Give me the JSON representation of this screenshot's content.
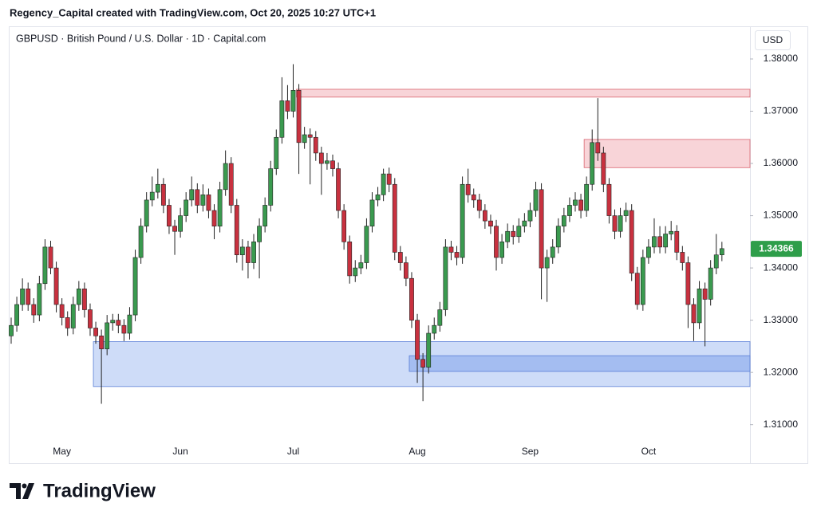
{
  "chart_data": {
    "type": "candlestick",
    "title": "Regency_Capital created with TradingView.com, Oct 20, 2025 10:27 UTC+1",
    "subtitle": "GBPUSD · British Pound / U.S. Dollar · 1D · Capital.com",
    "currency": "USD",
    "brand": "TradingView",
    "last_price": 1.34366,
    "up_color": "#3a9a4f",
    "down_color": "#c8313f",
    "last_price_color": "#2e9e4a",
    "ylim": [
      1.3069,
      1.3861
    ],
    "yticks": [
      {
        "value": 1.31,
        "label": "1.31000"
      },
      {
        "value": 1.32,
        "label": "1.32000"
      },
      {
        "value": 1.33,
        "label": "1.33000"
      },
      {
        "value": 1.34,
        "label": "1.34000"
      },
      {
        "value": 1.35,
        "label": "1.35000"
      },
      {
        "value": 1.36,
        "label": "1.36000"
      },
      {
        "value": 1.37,
        "label": "1.37000"
      },
      {
        "value": 1.38,
        "label": "1.38000"
      }
    ],
    "zones": [
      {
        "start": 51,
        "low": 1.3727,
        "high": 1.3742,
        "color": "#f7cdd1"
      },
      {
        "start": 102,
        "low": 1.3592,
        "high": 1.3646,
        "color": "#f7cdd1"
      },
      {
        "start": 15,
        "low": 1.3173,
        "high": 1.3259,
        "color": "#c6d6f7"
      },
      {
        "start": 71,
        "low": 1.3202,
        "high": 1.3232,
        "color": "#9cb7f0"
      }
    ],
    "categories": [
      null,
      null,
      null,
      null,
      null,
      null,
      null,
      null,
      null,
      "May",
      null,
      null,
      null,
      null,
      null,
      null,
      null,
      null,
      null,
      null,
      null,
      null,
      null,
      null,
      null,
      null,
      null,
      null,
      null,
      null,
      "Jun",
      null,
      null,
      null,
      null,
      null,
      null,
      null,
      null,
      null,
      null,
      null,
      null,
      null,
      null,
      null,
      null,
      null,
      null,
      null,
      "Jul",
      null,
      null,
      null,
      null,
      null,
      null,
      null,
      null,
      null,
      null,
      null,
      null,
      null,
      null,
      null,
      null,
      null,
      null,
      null,
      null,
      null,
      "Aug",
      null,
      null,
      null,
      null,
      null,
      null,
      null,
      null,
      null,
      null,
      null,
      null,
      null,
      null,
      null,
      null,
      null,
      null,
      null,
      "Sep",
      null,
      null,
      null,
      null,
      null,
      null,
      null,
      null,
      null,
      null,
      null,
      null,
      null,
      null,
      null,
      null,
      null,
      null,
      null,
      null,
      "Oct",
      null,
      null,
      null,
      null,
      null,
      null,
      null,
      null,
      null,
      null,
      null,
      null,
      null
    ],
    "candles": [
      [
        1.327,
        1.3305,
        1.3255,
        1.329
      ],
      [
        1.329,
        1.3345,
        1.3278,
        1.333
      ],
      [
        1.333,
        1.338,
        1.3318,
        1.336
      ],
      [
        1.336,
        1.3372,
        1.3318,
        1.333
      ],
      [
        1.333,
        1.3342,
        1.3295,
        1.331
      ],
      [
        1.331,
        1.3385,
        1.3298,
        1.337
      ],
      [
        1.337,
        1.3455,
        1.3358,
        1.344
      ],
      [
        1.344,
        1.3452,
        1.3388,
        1.34
      ],
      [
        1.34,
        1.3412,
        1.3315,
        1.333
      ],
      [
        1.333,
        1.3342,
        1.329,
        1.3305
      ],
      [
        1.3305,
        1.3317,
        1.327,
        1.3285
      ],
      [
        1.3285,
        1.3345,
        1.3273,
        1.333
      ],
      [
        1.333,
        1.3375,
        1.3318,
        1.336
      ],
      [
        1.336,
        1.3372,
        1.3305,
        1.332
      ],
      [
        1.332,
        1.3332,
        1.327,
        1.3285
      ],
      [
        1.3285,
        1.3297,
        1.3255,
        1.327
      ],
      [
        1.327,
        1.3282,
        1.314,
        1.3245
      ],
      [
        1.3245,
        1.331,
        1.3233,
        1.3295
      ],
      [
        1.3295,
        1.3312,
        1.328,
        1.33
      ],
      [
        1.33,
        1.3312,
        1.3275,
        1.329
      ],
      [
        1.329,
        1.3302,
        1.326,
        1.3275
      ],
      [
        1.3275,
        1.3325,
        1.3263,
        1.331
      ],
      [
        1.331,
        1.3435,
        1.3298,
        1.342
      ],
      [
        1.342,
        1.3495,
        1.3408,
        1.348
      ],
      [
        1.348,
        1.3545,
        1.3468,
        1.353
      ],
      [
        1.353,
        1.3575,
        1.3518,
        1.3545
      ],
      [
        1.3545,
        1.359,
        1.3533,
        1.356
      ],
      [
        1.356,
        1.3572,
        1.3505,
        1.352
      ],
      [
        1.352,
        1.3532,
        1.3465,
        1.348
      ],
      [
        1.348,
        1.3492,
        1.3425,
        1.347
      ],
      [
        1.347,
        1.3515,
        1.3458,
        1.35
      ],
      [
        1.35,
        1.3545,
        1.3488,
        1.353
      ],
      [
        1.353,
        1.3575,
        1.3518,
        1.355
      ],
      [
        1.355,
        1.3562,
        1.3505,
        1.352
      ],
      [
        1.352,
        1.356,
        1.3508,
        1.354
      ],
      [
        1.354,
        1.3552,
        1.3495,
        1.351
      ],
      [
        1.351,
        1.3522,
        1.3455,
        1.348
      ],
      [
        1.348,
        1.3565,
        1.3468,
        1.355
      ],
      [
        1.355,
        1.3625,
        1.3538,
        1.36
      ],
      [
        1.36,
        1.3612,
        1.3505,
        1.352
      ],
      [
        1.352,
        1.3532,
        1.341,
        1.3425
      ],
      [
        1.3425,
        1.3455,
        1.3395,
        1.344
      ],
      [
        1.344,
        1.3452,
        1.338,
        1.341
      ],
      [
        1.341,
        1.3465,
        1.3398,
        1.345
      ],
      [
        1.345,
        1.3495,
        1.338,
        1.348
      ],
      [
        1.348,
        1.3535,
        1.3468,
        1.352
      ],
      [
        1.352,
        1.3605,
        1.3508,
        1.359
      ],
      [
        1.359,
        1.3665,
        1.3578,
        1.365
      ],
      [
        1.365,
        1.3765,
        1.3638,
        1.372
      ],
      [
        1.372,
        1.375,
        1.3685,
        1.37
      ],
      [
        1.37,
        1.379,
        1.3688,
        1.374
      ],
      [
        1.374,
        1.3752,
        1.358,
        1.364
      ],
      [
        1.364,
        1.367,
        1.3628,
        1.3655
      ],
      [
        1.3655,
        1.3667,
        1.356,
        1.365
      ],
      [
        1.365,
        1.3662,
        1.3605,
        1.362
      ],
      [
        1.362,
        1.3632,
        1.354,
        1.36
      ],
      [
        1.36,
        1.362,
        1.3588,
        1.3605
      ],
      [
        1.3605,
        1.3617,
        1.3575,
        1.359
      ],
      [
        1.359,
        1.3602,
        1.3495,
        1.351
      ],
      [
        1.351,
        1.3522,
        1.3435,
        1.345
      ],
      [
        1.345,
        1.3462,
        1.337,
        1.3385
      ],
      [
        1.3385,
        1.3415,
        1.3373,
        1.34
      ],
      [
        1.34,
        1.3425,
        1.3388,
        1.341
      ],
      [
        1.341,
        1.3495,
        1.3398,
        1.348
      ],
      [
        1.348,
        1.3545,
        1.3468,
        1.353
      ],
      [
        1.353,
        1.3555,
        1.3518,
        1.354
      ],
      [
        1.354,
        1.359,
        1.3528,
        1.358
      ],
      [
        1.358,
        1.3592,
        1.3545,
        1.356
      ],
      [
        1.356,
        1.3572,
        1.3415,
        1.343
      ],
      [
        1.343,
        1.3442,
        1.3395,
        1.341
      ],
      [
        1.341,
        1.3422,
        1.3365,
        1.338
      ],
      [
        1.338,
        1.3392,
        1.3285,
        1.33
      ],
      [
        1.33,
        1.3312,
        1.318,
        1.3225
      ],
      [
        1.3225,
        1.3237,
        1.3145,
        1.321
      ],
      [
        1.321,
        1.329,
        1.3198,
        1.3275
      ],
      [
        1.3275,
        1.3305,
        1.3263,
        1.329
      ],
      [
        1.329,
        1.3335,
        1.3278,
        1.332
      ],
      [
        1.332,
        1.3455,
        1.3308,
        1.344
      ],
      [
        1.344,
        1.3452,
        1.3415,
        1.343
      ],
      [
        1.343,
        1.3442,
        1.3405,
        1.342
      ],
      [
        1.342,
        1.3575,
        1.3408,
        1.356
      ],
      [
        1.356,
        1.359,
        1.3525,
        1.354
      ],
      [
        1.354,
        1.3552,
        1.3515,
        1.353
      ],
      [
        1.353,
        1.3542,
        1.3495,
        1.351
      ],
      [
        1.351,
        1.3522,
        1.3475,
        1.349
      ],
      [
        1.349,
        1.3502,
        1.3465,
        1.348
      ],
      [
        1.348,
        1.3492,
        1.3395,
        1.342
      ],
      [
        1.342,
        1.3465,
        1.3408,
        1.345
      ],
      [
        1.345,
        1.3485,
        1.3438,
        1.347
      ],
      [
        1.347,
        1.3482,
        1.3445,
        1.346
      ],
      [
        1.346,
        1.3495,
        1.3448,
        1.348
      ],
      [
        1.348,
        1.3505,
        1.3468,
        1.349
      ],
      [
        1.349,
        1.3525,
        1.3478,
        1.351
      ],
      [
        1.351,
        1.3565,
        1.3498,
        1.355
      ],
      [
        1.355,
        1.3562,
        1.334,
        1.34
      ],
      [
        1.34,
        1.3435,
        1.3335,
        1.342
      ],
      [
        1.342,
        1.3455,
        1.3408,
        1.344
      ],
      [
        1.344,
        1.3495,
        1.3428,
        1.348
      ],
      [
        1.348,
        1.3515,
        1.3468,
        1.35
      ],
      [
        1.35,
        1.3535,
        1.3488,
        1.352
      ],
      [
        1.352,
        1.3545,
        1.3508,
        1.353
      ],
      [
        1.353,
        1.3542,
        1.3495,
        1.351
      ],
      [
        1.351,
        1.3575,
        1.3498,
        1.356
      ],
      [
        1.356,
        1.3665,
        1.3548,
        1.364
      ],
      [
        1.364,
        1.3725,
        1.3605,
        1.362
      ],
      [
        1.362,
        1.3632,
        1.3545,
        1.356
      ],
      [
        1.356,
        1.3572,
        1.3485,
        1.35
      ],
      [
        1.35,
        1.3512,
        1.3455,
        1.347
      ],
      [
        1.347,
        1.3515,
        1.3458,
        1.35
      ],
      [
        1.35,
        1.3525,
        1.3488,
        1.351
      ],
      [
        1.351,
        1.3522,
        1.3375,
        1.339
      ],
      [
        1.339,
        1.3402,
        1.332,
        1.333
      ],
      [
        1.333,
        1.3435,
        1.3318,
        1.342
      ],
      [
        1.342,
        1.3455,
        1.3408,
        1.344
      ],
      [
        1.344,
        1.3495,
        1.3428,
        1.346
      ],
      [
        1.346,
        1.348,
        1.3428,
        1.344
      ],
      [
        1.344,
        1.348,
        1.3428,
        1.3465
      ],
      [
        1.3465,
        1.349,
        1.3453,
        1.347
      ],
      [
        1.347,
        1.3482,
        1.3415,
        1.343
      ],
      [
        1.343,
        1.3442,
        1.3395,
        1.341
      ],
      [
        1.341,
        1.3422,
        1.3285,
        1.333
      ],
      [
        1.333,
        1.3342,
        1.326,
        1.3295
      ],
      [
        1.3295,
        1.3375,
        1.3283,
        1.336
      ],
      [
        1.336,
        1.3372,
        1.325,
        1.334
      ],
      [
        1.334,
        1.3415,
        1.3328,
        1.34
      ],
      [
        1.34,
        1.3465,
        1.3388,
        1.3425
      ],
      [
        1.3425,
        1.345,
        1.3413,
        1.3437
      ]
    ]
  }
}
